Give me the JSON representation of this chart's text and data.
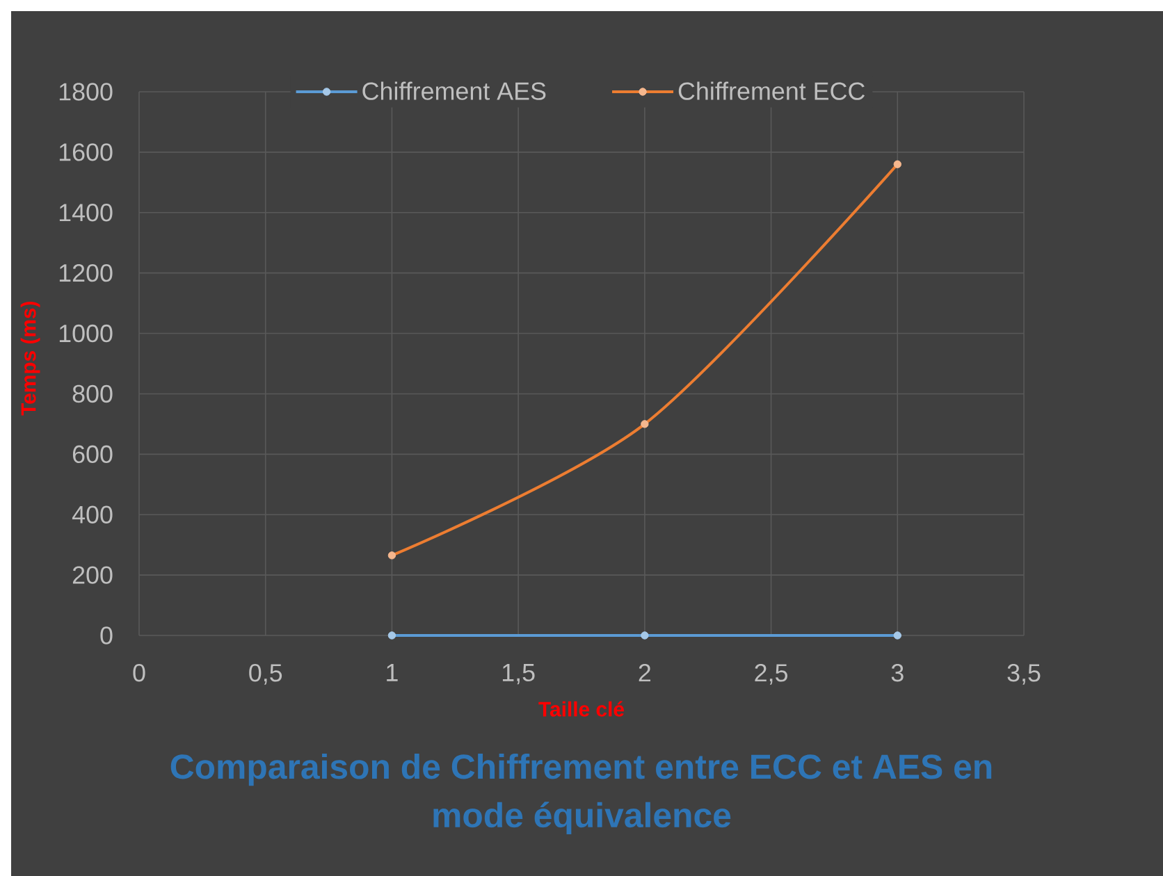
{
  "chart_data": {
    "type": "line",
    "title": "Comparaison de Chiffrement entre ECC et AES en mode équivalence",
    "xlabel": "Taille clé",
    "ylabel": "Temps (ms)",
    "x": [
      1,
      2,
      3
    ],
    "series": [
      {
        "name": "Chiffrement AES",
        "color": "#5b9bd5",
        "values": [
          0,
          0,
          0
        ]
      },
      {
        "name": "Chiffrement ECC",
        "color": "#ed7d31",
        "values": [
          265,
          700,
          1560
        ]
      }
    ],
    "xlim": [
      0,
      3.5
    ],
    "xticks": [
      0,
      {
        "value": 0.5,
        "label": "0,5"
      },
      1,
      {
        "value": 1.5,
        "label": "1,5"
      },
      2,
      {
        "value": 2.5,
        "label": "2,5"
      },
      3,
      {
        "value": 3.5,
        "label": "3,5"
      }
    ],
    "ylim": [
      0,
      1800
    ],
    "yticks": [
      0,
      200,
      400,
      600,
      800,
      1000,
      1200,
      1400,
      1600,
      1800
    ],
    "grid": true,
    "legend": "top",
    "marker": "circle",
    "line_style": "solid"
  }
}
